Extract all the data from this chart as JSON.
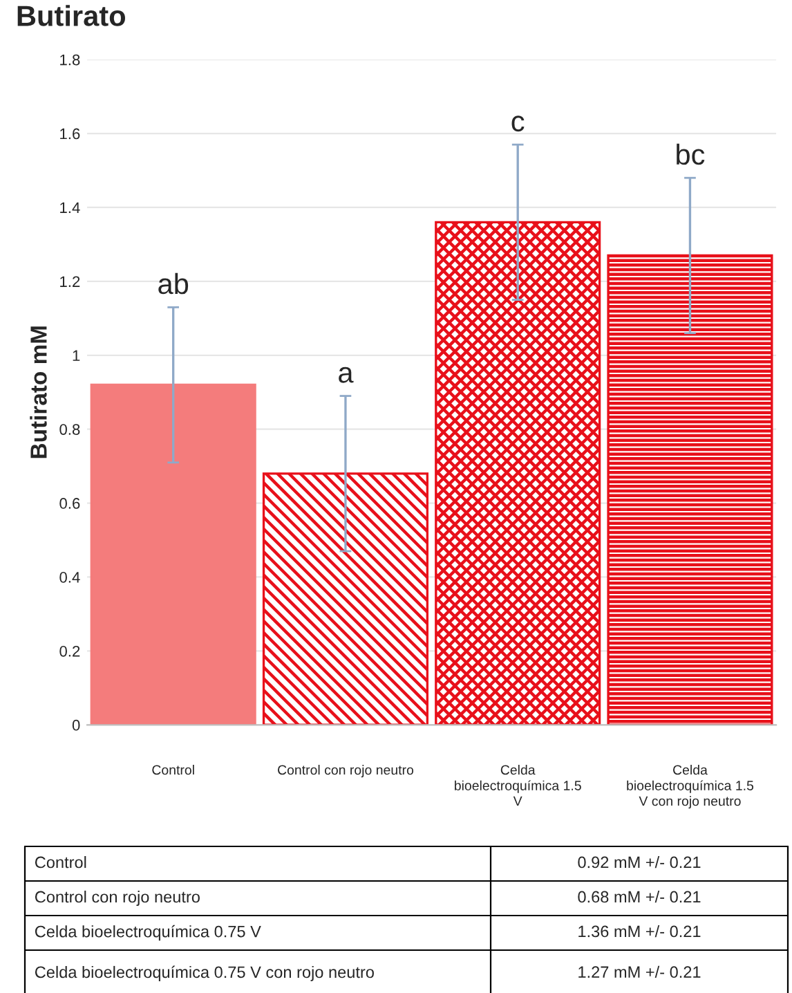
{
  "chart_data": {
    "type": "bar",
    "title": "Butirato",
    "ylabel": "Butirato mM",
    "categories": [
      "Control",
      "Control con rojo neutro",
      "Celda bioelectroquímica 1.5 V",
      "Celda bioelectroquímica 1.5 V con rojo neutro"
    ],
    "values": [
      0.92,
      0.68,
      1.36,
      1.27
    ],
    "errors": [
      0.21,
      0.21,
      0.21,
      0.21
    ],
    "colors": [
      "#f47c7c",
      "#e8101a",
      "#e8101a",
      "#e8101a"
    ],
    "ylim": [
      0,
      1.8
    ],
    "yticks": [
      0,
      0.2,
      0.4,
      0.6,
      0.8,
      1,
      1.2,
      1.4,
      1.6,
      1.8
    ],
    "grid": "y",
    "annotations": [
      "ab",
      "a",
      "c",
      "bc",
      "Control",
      "0.92 mM +/- 0.21",
      "Control con rojo neutro",
      "0.68 mM +/- 0.21",
      "Celda bioelectroquímica 0.75 V",
      "1.36 mM +/- 0.21",
      "Celda bioelectroquímica 0.75 V con rojo neutro",
      "1.27 mM +/- 0.21"
    ]
  }
}
